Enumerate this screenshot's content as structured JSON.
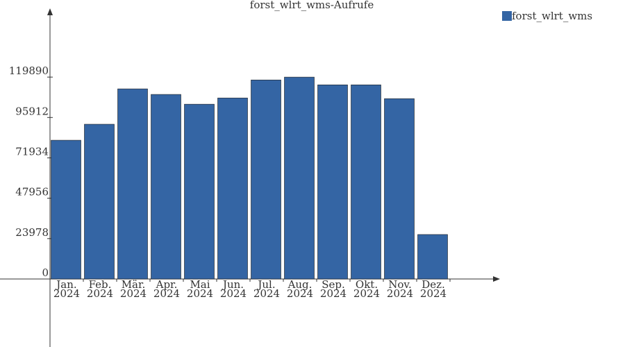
{
  "chart_data": {
    "type": "bar",
    "title": "forst_wlrt_wms-Aufrufe",
    "categories": [
      "Jan. 2024",
      "Feb. 2024",
      "Mär. 2024",
      "Apr. 2024",
      "Mai 2024",
      "Jun. 2024",
      "Jul. 2024",
      "Aug. 2024",
      "Sep. 2024",
      "Okt. 2024",
      "Nov. 2024",
      "Dez. 2024"
    ],
    "series": [
      {
        "name": "forst_wlrt_wms",
        "color": "#3465a4",
        "values": [
          82400,
          91900,
          112900,
          109600,
          103800,
          107500,
          118200,
          119890,
          115300,
          115300,
          107100,
          26400
        ]
      }
    ],
    "ylim": [
      0,
      159500
    ],
    "yticks": [
      0,
      23978,
      47956,
      71934,
      95912,
      119890
    ],
    "legend": "top-right"
  }
}
